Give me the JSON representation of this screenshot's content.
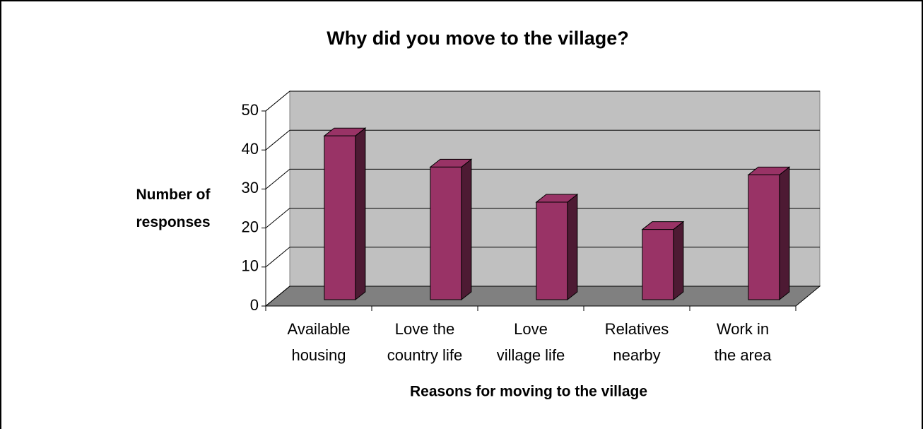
{
  "chart_data": {
    "type": "bar3d",
    "title": "Why did you move to the village?",
    "x_label": "Reasons for moving to the village",
    "y_label": "Number of\nresponses",
    "categories": [
      "Available\nhousing",
      "Love the\ncountry life",
      "Love\nvillage life",
      "Relatives\nnearby",
      "Work in\nthe area"
    ],
    "values": [
      42,
      34,
      25,
      18,
      32
    ],
    "color": "#993366",
    "ylim": [
      0,
      50
    ],
    "yticks": [
      0,
      10,
      20,
      30,
      40,
      50
    ],
    "grid": true
  }
}
